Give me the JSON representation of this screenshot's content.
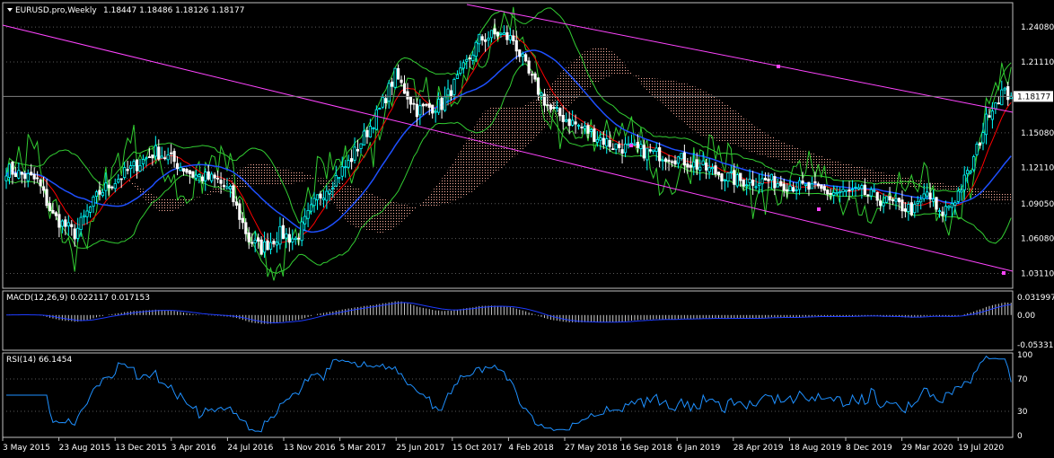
{
  "header": {
    "symbol": "EURUSD.pro,Weekly",
    "ohlc": "1.18447 1.18486 1.18126 1.18177"
  },
  "price_label": "1.18177",
  "colors": {
    "background": "#000000",
    "bull": "#00ffff",
    "bear": "#ffffff",
    "bollinger": "#32cd32",
    "channel": "#ff44ff",
    "ma_red": "#ff0000",
    "ma_blue": "#1e50ff",
    "ichimoku_cloud": "#ffb0a0",
    "macd_hist": "#c8c8c8",
    "macd_signal": "#1e3cff",
    "rsi_line": "#1e90ff"
  },
  "chart_data": [
    {
      "type": "candlestick",
      "pane": "price",
      "ylim": [
        1.02,
        1.26
      ],
      "y_ticks": [
        "1.24080",
        "1.21110",
        "1.18177",
        "1.15080",
        "1.12110",
        "1.09050",
        "1.06080",
        "1.03110"
      ],
      "current_price": 1.18177,
      "overlays": [
        "Bollinger Bands",
        "Moving averages",
        "Ichimoku cloud",
        "Trend channel"
      ],
      "anchor_closes": [
        [
          0,
          1.12
        ],
        [
          10,
          1.11
        ],
        [
          15,
          1.08
        ],
        [
          22,
          1.065
        ],
        [
          30,
          1.1
        ],
        [
          40,
          1.12
        ],
        [
          48,
          1.135
        ],
        [
          52,
          1.13
        ],
        [
          60,
          1.115
        ],
        [
          68,
          1.11
        ],
        [
          72,
          1.1
        ],
        [
          78,
          1.06
        ],
        [
          82,
          1.052
        ],
        [
          88,
          1.065
        ],
        [
          93,
          1.06
        ],
        [
          100,
          1.095
        ],
        [
          110,
          1.125
        ],
        [
          120,
          1.17
        ],
        [
          125,
          1.2
        ],
        [
          132,
          1.17
        ],
        [
          140,
          1.175
        ],
        [
          146,
          1.2
        ],
        [
          152,
          1.23
        ],
        [
          158,
          1.235
        ],
        [
          163,
          1.23
        ],
        [
          168,
          1.2
        ],
        [
          175,
          1.17
        ],
        [
          185,
          1.155
        ],
        [
          195,
          1.14
        ],
        [
          205,
          1.135
        ],
        [
          215,
          1.13
        ],
        [
          225,
          1.12
        ],
        [
          235,
          1.11
        ],
        [
          245,
          1.11
        ],
        [
          255,
          1.105
        ],
        [
          265,
          1.1
        ],
        [
          275,
          1.1
        ],
        [
          285,
          1.09
        ],
        [
          292,
          1.085
        ],
        [
          296,
          1.1
        ],
        [
          300,
          1.08
        ],
        [
          305,
          1.095
        ],
        [
          310,
          1.12
        ],
        [
          316,
          1.17
        ],
        [
          320,
          1.185
        ],
        [
          323,
          1.182
        ]
      ]
    },
    {
      "type": "bar",
      "pane": "macd",
      "label": "MACD(12,26,9) 0.022117 0.017153",
      "ylim": [
        -0.06,
        0.04
      ],
      "y_ticks": [
        "0.031997",
        "0.00",
        "-0.053316"
      ],
      "main": 0.022117,
      "signal": 0.017153
    },
    {
      "type": "line",
      "pane": "rsi",
      "label": "RSI(14) 66.1454",
      "ylim": [
        0,
        100
      ],
      "y_ticks": [
        "100",
        "70",
        "30",
        "0"
      ],
      "levels": [
        70,
        30
      ],
      "current": 66.1454
    },
    {
      "type": "axis",
      "x_ticks": [
        "3 May 2015",
        "23 Aug 2015",
        "13 Dec 2015",
        "3 Apr 2016",
        "24 Jul 2016",
        "13 Nov 2016",
        "5 Mar 2017",
        "25 Jun 2017",
        "15 Oct 2017",
        "4 Feb 2018",
        "27 May 2018",
        "16 Sep 2018",
        "6 Jan 2019",
        "28 Apr 2019",
        "18 Aug 2019",
        "8 Dec 2019",
        "29 Mar 2020",
        "19 Jul 2020"
      ]
    }
  ]
}
